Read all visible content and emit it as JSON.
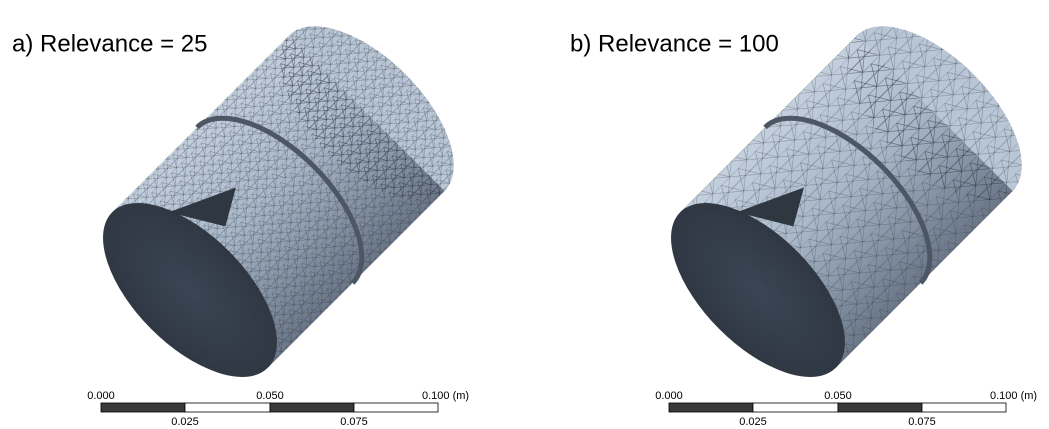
{
  "panels": [
    {
      "label": "a)   Relevance = 25",
      "scale": {
        "top": [
          "0.000",
          "0.050",
          "0.100 (m)"
        ],
        "bottom": [
          "0.025",
          "0.075"
        ]
      }
    },
    {
      "label": "b) Relevance = 100",
      "scale": {
        "top": [
          "0.000",
          "0.050",
          "0.100 (m)"
        ],
        "bottom": [
          "0.025",
          "0.075"
        ]
      }
    }
  ]
}
